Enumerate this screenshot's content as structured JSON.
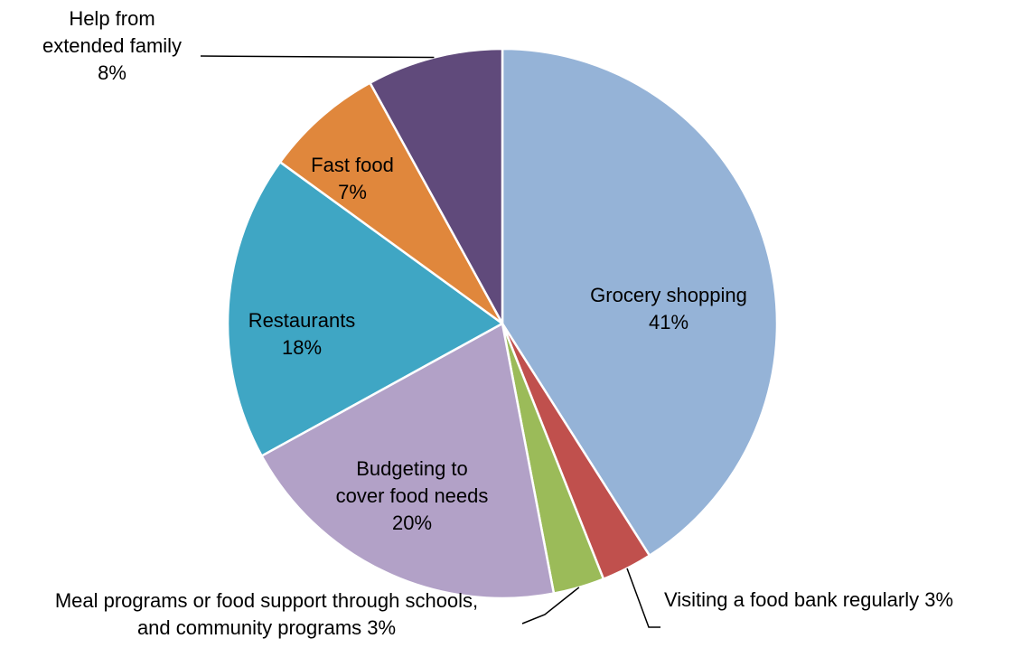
{
  "chart_data": {
    "type": "pie",
    "title": "",
    "start_angle_deg": 0,
    "direction": "clockwise",
    "slices": [
      {
        "name": "Grocery shopping",
        "value": 41,
        "label_lines": [
          "Grocery shopping",
          "41%"
        ],
        "color": "#95B3D7"
      },
      {
        "name": "Visiting a food bank regularly",
        "value": 3,
        "label_lines": [
          "Visiting a food bank regularly 3%"
        ],
        "color": "#C0504D"
      },
      {
        "name": "Meal programs or food support through schools, and community programs",
        "value": 3,
        "label_lines": [
          "Meal programs or food support through schools,",
          "and community programs 3%"
        ],
        "color": "#9BBB59"
      },
      {
        "name": "Budgeting to cover food needs",
        "value": 20,
        "label_lines": [
          "Budgeting to",
          "cover food needs",
          "20%"
        ],
        "color": "#B2A1C7"
      },
      {
        "name": "Restaurants",
        "value": 18,
        "label_lines": [
          "Restaurants",
          "18%"
        ],
        "color": "#3FA6C4"
      },
      {
        "name": "Fast food",
        "value": 7,
        "label_lines": [
          "Fast food",
          "7%"
        ],
        "color": "#E0873C"
      },
      {
        "name": "Help from extended family",
        "value": 8,
        "label_lines": [
          "Help from",
          "extended family",
          "8%"
        ],
        "color": "#604A7B"
      }
    ]
  }
}
